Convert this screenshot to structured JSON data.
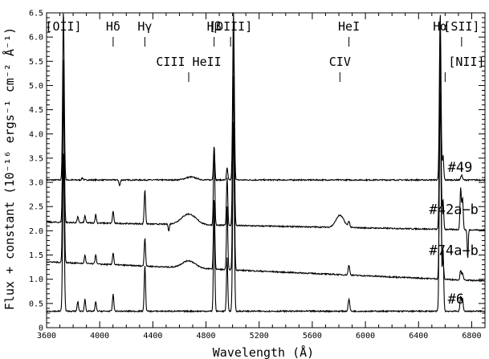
{
  "chart_data": {
    "type": "line",
    "xlabel": "Wavelength (Å)",
    "ylabel": "Flux + constant (10⁻¹⁶ ergs⁻¹ cm⁻² Å⁻¹)",
    "xlim": [
      3600,
      6900
    ],
    "ylim": [
      0,
      6.5
    ],
    "xticks": [
      3600,
      4000,
      4400,
      4800,
      5200,
      5600,
      6000,
      6400,
      6800
    ],
    "yticks": [
      0,
      0.5,
      1.0,
      1.5,
      2.0,
      2.5,
      3.0,
      3.5,
      4.0,
      4.5,
      5.0,
      5.5,
      6.0,
      6.5
    ],
    "ytick_labels": [
      "0",
      "0.5",
      "1.0",
      "1.5",
      "2.0",
      "2.5",
      "3.0",
      "3.5",
      "4.0",
      "4.5",
      "5.0",
      "5.5",
      "6.0",
      "6.5"
    ],
    "grid": false,
    "line_labels": [
      {
        "text": "[OII]",
        "x": 3727,
        "row": "top"
      },
      {
        "text": "Hδ",
        "x": 4101,
        "row": "top"
      },
      {
        "text": "Hγ",
        "x": 4340,
        "row": "top"
      },
      {
        "text": "Hβ",
        "x": 4861,
        "row": "top"
      },
      {
        "text": "[OIII]",
        "x": 4985,
        "row": "top"
      },
      {
        "text": "HeI",
        "x": 5876,
        "row": "top"
      },
      {
        "text": "Hα",
        "x": 6563,
        "row": "top"
      },
      {
        "text": "[SII]",
        "x": 6724,
        "row": "top"
      },
      {
        "text": "CIII HeII",
        "x": 4670,
        "row": "mid"
      },
      {
        "text": "CIV",
        "x": 5808,
        "row": "mid"
      },
      {
        "text": "[NII]",
        "x": 6600,
        "row": "mid"
      }
    ],
    "series": [
      {
        "name": "#49",
        "offset": 3.05,
        "slope": 0.0,
        "label_x": 6620,
        "label_y": 3.22,
        "features": [
          {
            "center": 3727,
            "amp": 3.5,
            "width": 6
          },
          {
            "center": 3870,
            "amp": 0.04,
            "width": 6
          },
          {
            "center": 4150,
            "amp": -0.12,
            "width": 5
          },
          {
            "center": 4686,
            "amp": 0.06,
            "width": 40
          },
          {
            "center": 4861,
            "amp": 0.7,
            "width": 5
          },
          {
            "center": 4959,
            "amp": 0.25,
            "width": 5
          },
          {
            "center": 5007,
            "amp": 3.45,
            "width": 6
          },
          {
            "center": 6563,
            "amp": 3.45,
            "width": 6
          },
          {
            "center": 6584,
            "amp": 0.5,
            "width": 5
          },
          {
            "center": 6724,
            "amp": 0.1,
            "width": 6
          }
        ]
      },
      {
        "name": "#42a−b",
        "offset": 2.18,
        "slope": -5e-05,
        "label_x": 6480,
        "label_y": 2.35,
        "features": [
          {
            "center": 3727,
            "amp": 3.4,
            "width": 6
          },
          {
            "center": 3835,
            "amp": 0.12,
            "width": 5
          },
          {
            "center": 3889,
            "amp": 0.15,
            "width": 5
          },
          {
            "center": 3970,
            "amp": 0.18,
            "width": 5
          },
          {
            "center": 4101,
            "amp": 0.25,
            "width": 5
          },
          {
            "center": 4340,
            "amp": 0.7,
            "width": 5
          },
          {
            "center": 4520,
            "amp": -0.15,
            "width": 4
          },
          {
            "center": 4670,
            "amp": 0.22,
            "width": 55
          },
          {
            "center": 4861,
            "amp": 1.6,
            "width": 5
          },
          {
            "center": 4959,
            "amp": 1.0,
            "width": 5
          },
          {
            "center": 5007,
            "amp": 3.9,
            "width": 6
          },
          {
            "center": 5808,
            "amp": 0.25,
            "width": 30
          },
          {
            "center": 5876,
            "amp": 0.12,
            "width": 6
          },
          {
            "center": 6563,
            "amp": 3.7,
            "width": 6
          },
          {
            "center": 6584,
            "amp": 0.6,
            "width": 5
          },
          {
            "center": 6717,
            "amp": 0.85,
            "width": 5
          },
          {
            "center": 6731,
            "amp": 0.65,
            "width": 5
          },
          {
            "center": 6770,
            "amp": -0.6,
            "width": 4
          }
        ]
      },
      {
        "name": "#74a−b",
        "offset": 1.36,
        "slope": -0.00012,
        "label_x": 6480,
        "label_y": 1.5,
        "features": [
          {
            "center": 3727,
            "amp": 3.6,
            "width": 6
          },
          {
            "center": 3889,
            "amp": 0.18,
            "width": 5
          },
          {
            "center": 3970,
            "amp": 0.2,
            "width": 5
          },
          {
            "center": 4101,
            "amp": 0.25,
            "width": 5
          },
          {
            "center": 4340,
            "amp": 0.58,
            "width": 5
          },
          {
            "center": 4670,
            "amp": 0.15,
            "width": 50
          },
          {
            "center": 4861,
            "amp": 1.45,
            "width": 5
          },
          {
            "center": 4959,
            "amp": 1.3,
            "width": 5
          },
          {
            "center": 5007,
            "amp": 4.0,
            "width": 6
          },
          {
            "center": 5876,
            "amp": 0.2,
            "width": 6
          },
          {
            "center": 6563,
            "amp": 3.9,
            "width": 6
          },
          {
            "center": 6584,
            "amp": 0.4,
            "width": 5
          },
          {
            "center": 6717,
            "amp": 0.2,
            "width": 5
          },
          {
            "center": 6731,
            "amp": 0.15,
            "width": 5
          }
        ]
      },
      {
        "name": "#6",
        "offset": 0.34,
        "slope": 0.0,
        "label_x": 6620,
        "label_y": 0.5,
        "features": [
          {
            "center": 3727,
            "amp": 3.3,
            "width": 6
          },
          {
            "center": 3835,
            "amp": 0.2,
            "width": 5
          },
          {
            "center": 3889,
            "amp": 0.25,
            "width": 5
          },
          {
            "center": 3970,
            "amp": 0.2,
            "width": 5
          },
          {
            "center": 4101,
            "amp": 0.35,
            "width": 5
          },
          {
            "center": 4340,
            "amp": 0.95,
            "width": 5
          },
          {
            "center": 4861,
            "amp": 2.05,
            "width": 5
          },
          {
            "center": 4959,
            "amp": 1.1,
            "width": 5
          },
          {
            "center": 5007,
            "amp": 3.9,
            "width": 6
          },
          {
            "center": 5876,
            "amp": 0.25,
            "width": 6
          },
          {
            "center": 6563,
            "amp": 5.7,
            "width": 6
          },
          {
            "center": 6584,
            "amp": 1.3,
            "width": 5
          },
          {
            "center": 6717,
            "amp": 0.3,
            "width": 5
          },
          {
            "center": 6731,
            "amp": 0.25,
            "width": 5
          }
        ]
      }
    ]
  }
}
